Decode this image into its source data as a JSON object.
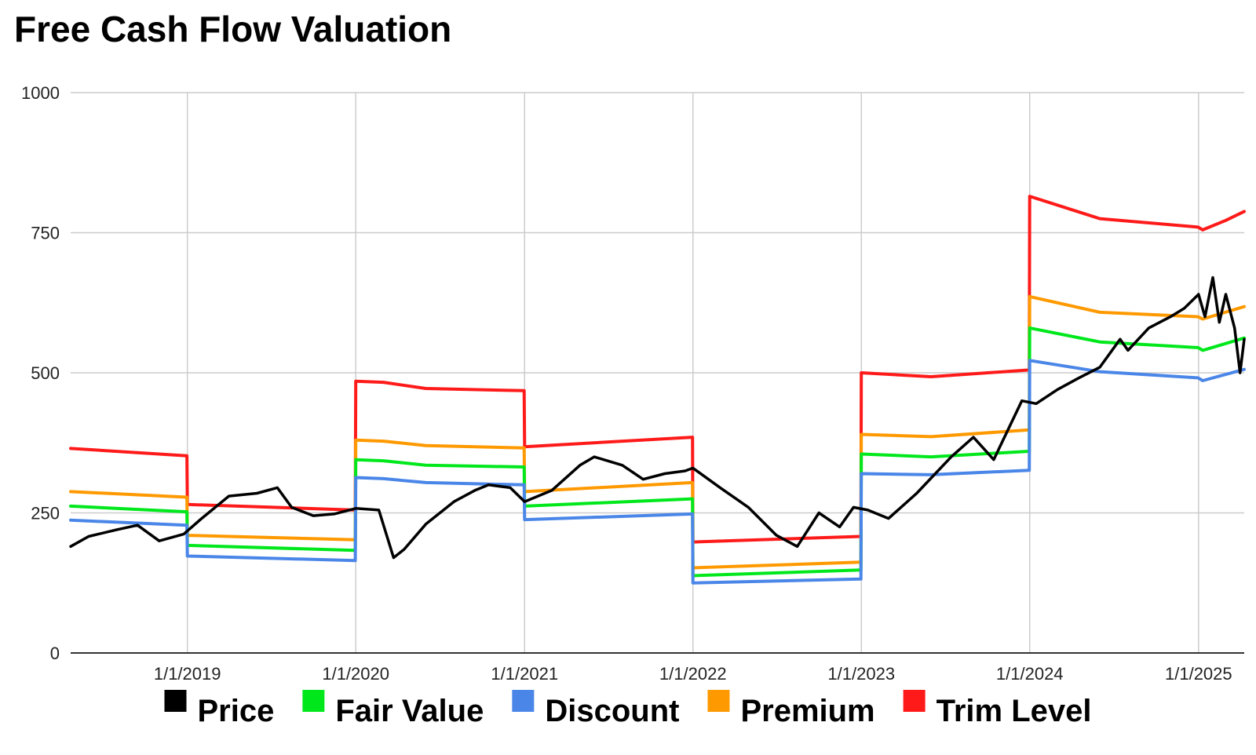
{
  "chart_data": {
    "type": "line",
    "title": "Free Cash Flow Valuation",
    "xlabel": "",
    "ylabel": "",
    "ylim": [
      0,
      1000
    ],
    "yticks": [
      0,
      250,
      500,
      750,
      1000
    ],
    "xlim": [
      "2018-04-23",
      "2025-04-10"
    ],
    "xticks": [
      {
        "date": "2019-01-01",
        "label": "1/1/2019"
      },
      {
        "date": "2020-01-01",
        "label": "1/1/2020"
      },
      {
        "date": "2021-01-01",
        "label": "1/1/2021"
      },
      {
        "date": "2022-01-01",
        "label": "1/1/2022"
      },
      {
        "date": "2023-01-01",
        "label": "1/1/2023"
      },
      {
        "date": "2024-01-01",
        "label": "1/1/2024"
      },
      {
        "date": "2025-01-01",
        "label": "1/1/2025"
      }
    ],
    "grid": true,
    "legend_position": "bottom",
    "series": [
      {
        "name": "Price",
        "color": "#000000",
        "x": [
          "2018-04-23",
          "2018-06-01",
          "2018-08-01",
          "2018-09-15",
          "2018-11-01",
          "2018-12-24",
          "2019-02-01",
          "2019-04-01",
          "2019-06-01",
          "2019-07-15",
          "2019-08-15",
          "2019-10-01",
          "2019-11-15",
          "2020-01-01",
          "2020-02-20",
          "2020-03-23",
          "2020-04-15",
          "2020-06-01",
          "2020-08-01",
          "2020-09-15",
          "2020-10-15",
          "2020-12-01",
          "2021-01-01",
          "2021-03-01",
          "2021-05-01",
          "2021-06-01",
          "2021-08-01",
          "2021-09-15",
          "2021-11-01",
          "2021-12-15",
          "2022-01-01",
          "2022-03-01",
          "2022-05-01",
          "2022-07-01",
          "2022-08-15",
          "2022-10-01",
          "2022-11-15",
          "2022-12-15",
          "2023-01-15",
          "2023-03-01",
          "2023-05-01",
          "2023-07-15",
          "2023-09-01",
          "2023-10-15",
          "2023-12-15",
          "2024-01-15",
          "2024-03-01",
          "2024-04-15",
          "2024-06-01",
          "2024-07-15",
          "2024-08-01",
          "2024-09-15",
          "2024-11-01",
          "2024-12-01",
          "2025-01-01",
          "2025-01-15",
          "2025-02-01",
          "2025-02-15",
          "2025-03-01",
          "2025-03-20",
          "2025-04-01",
          "2025-04-10"
        ],
        "values": [
          190,
          208,
          220,
          228,
          200,
          212,
          240,
          280,
          285,
          295,
          260,
          245,
          248,
          258,
          255,
          170,
          185,
          230,
          270,
          290,
          300,
          295,
          270,
          290,
          335,
          350,
          335,
          310,
          320,
          325,
          330,
          295,
          260,
          210,
          190,
          250,
          225,
          260,
          255,
          240,
          285,
          350,
          385,
          345,
          450,
          445,
          470,
          490,
          510,
          560,
          540,
          580,
          600,
          615,
          640,
          600,
          670,
          590,
          640,
          580,
          500,
          560
        ]
      },
      {
        "name": "Fair Value",
        "color": "#00e81c",
        "x": [
          "2018-04-23",
          "2018-12-31",
          "2019-01-01",
          "2019-12-31",
          "2020-01-01",
          "2020-03-01",
          "2020-06-01",
          "2020-12-31",
          "2021-01-01",
          "2021-12-31",
          "2022-01-01",
          "2022-12-31",
          "2023-01-01",
          "2023-06-01",
          "2023-12-31",
          "2024-01-01",
          "2024-06-01",
          "2024-12-31",
          "2025-01-10",
          "2025-04-10"
        ],
        "values": [
          262,
          252,
          192,
          183,
          345,
          343,
          335,
          332,
          262,
          275,
          138,
          148,
          355,
          350,
          360,
          580,
          555,
          545,
          540,
          562
        ]
      },
      {
        "name": "Discount",
        "color": "#4a86e8",
        "x": [
          "2018-04-23",
          "2018-12-31",
          "2019-01-01",
          "2019-12-31",
          "2020-01-01",
          "2020-03-01",
          "2020-06-01",
          "2020-12-31",
          "2021-01-01",
          "2021-12-31",
          "2022-01-01",
          "2022-12-31",
          "2023-01-01",
          "2023-06-01",
          "2023-12-31",
          "2024-01-01",
          "2024-06-01",
          "2024-12-31",
          "2025-01-10",
          "2025-04-10"
        ],
        "values": [
          237,
          228,
          173,
          165,
          313,
          311,
          304,
          300,
          238,
          248,
          125,
          132,
          320,
          318,
          326,
          522,
          502,
          491,
          486,
          506
        ]
      },
      {
        "name": "Premium",
        "color": "#ff9900",
        "x": [
          "2018-04-23",
          "2018-12-31",
          "2019-01-01",
          "2019-12-31",
          "2020-01-01",
          "2020-03-01",
          "2020-06-01",
          "2020-12-31",
          "2021-01-01",
          "2021-12-31",
          "2022-01-01",
          "2022-12-31",
          "2023-01-01",
          "2023-06-01",
          "2023-12-31",
          "2024-01-01",
          "2024-06-01",
          "2024-12-31",
          "2025-01-10",
          "2025-04-10"
        ],
        "values": [
          288,
          278,
          210,
          202,
          380,
          378,
          370,
          366,
          288,
          304,
          152,
          162,
          390,
          386,
          398,
          636,
          608,
          600,
          596,
          618
        ]
      },
      {
        "name": "Trim Level",
        "color": "#ff1a1a",
        "x": [
          "2018-04-23",
          "2018-12-31",
          "2019-01-01",
          "2019-12-31",
          "2020-01-01",
          "2020-03-01",
          "2020-06-01",
          "2020-12-31",
          "2021-01-01",
          "2021-12-31",
          "2022-01-01",
          "2022-12-31",
          "2023-01-01",
          "2023-06-01",
          "2023-12-31",
          "2024-01-01",
          "2024-06-01",
          "2024-12-31",
          "2025-01-10",
          "2025-03-01",
          "2025-04-10"
        ],
        "values": [
          365,
          352,
          265,
          255,
          485,
          483,
          472,
          468,
          368,
          385,
          198,
          208,
          500,
          493,
          505,
          815,
          775,
          760,
          755,
          772,
          788
        ]
      }
    ]
  }
}
